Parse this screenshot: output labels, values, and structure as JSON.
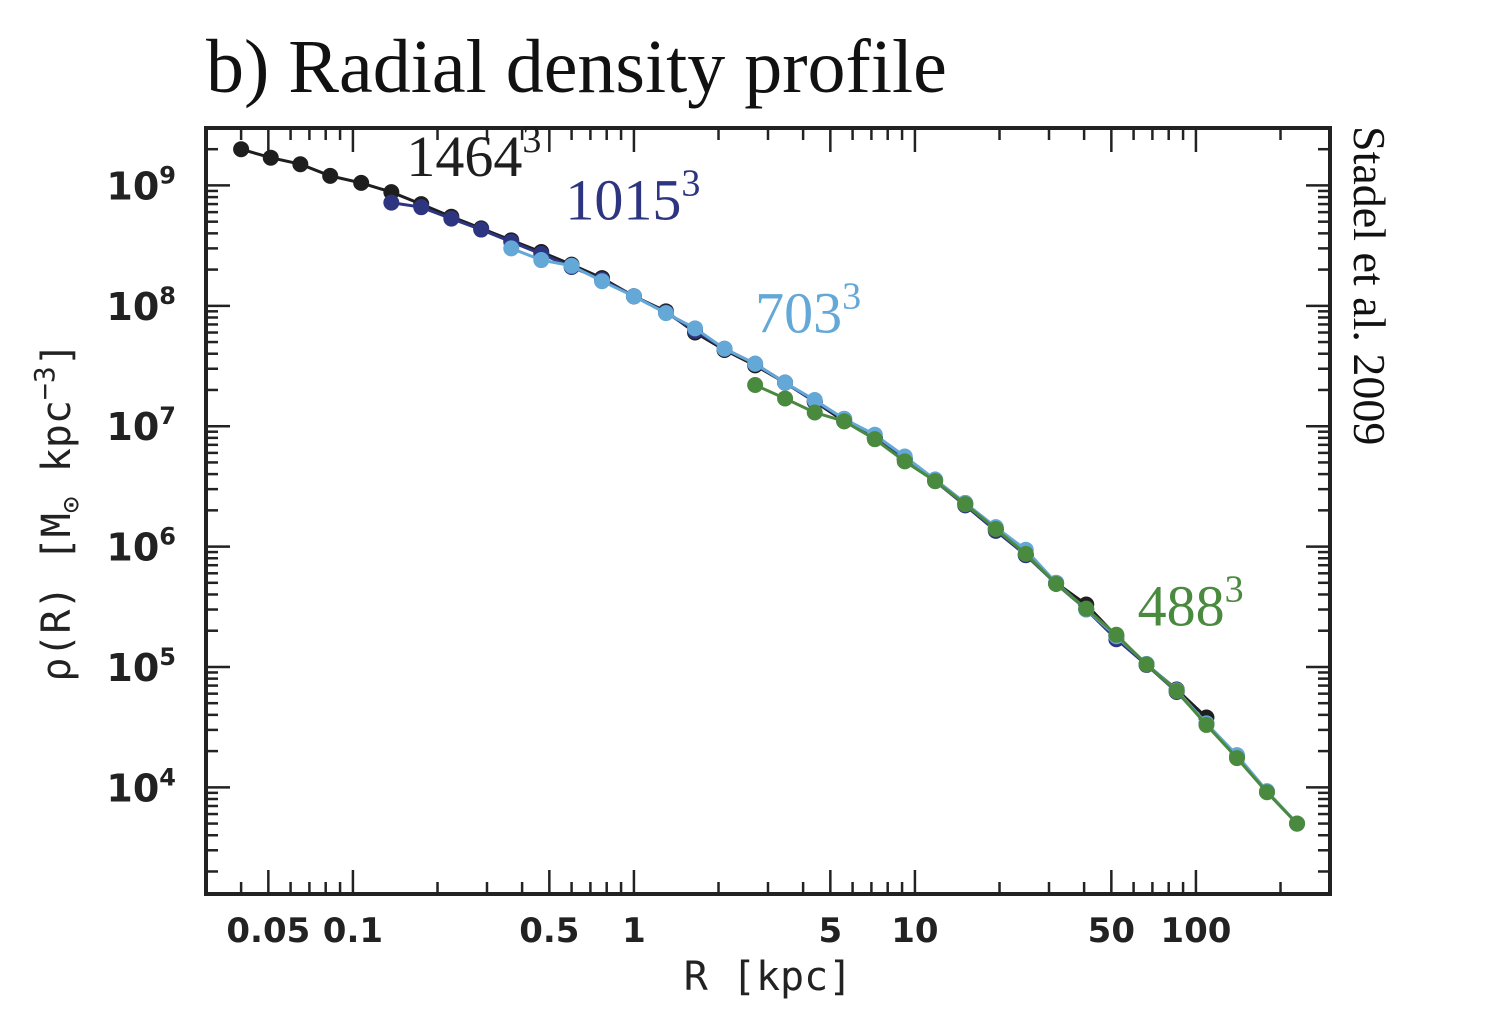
{
  "chart_data": {
    "type": "line",
    "title": "b) Radial density profile",
    "credit": "Stadel et al. 2009",
    "xlabel": "R [kpc]",
    "ylabel_main": "ρ(R) [M",
    "ylabel_sun": "⊙",
    "ylabel_kpc": " kpc",
    "ylabel_exp": "−3",
    "ylabel_end": "]",
    "x_scale": "log",
    "y_scale": "log",
    "xlim": [
      0.03,
      300
    ],
    "ylim": [
      1300,
      3000000000
    ],
    "xticks": [
      {
        "value": 0.05,
        "label": "0.05"
      },
      {
        "value": 0.1,
        "label": "0.1"
      },
      {
        "value": 0.5,
        "label": "0.5"
      },
      {
        "value": 1,
        "label": "1"
      },
      {
        "value": 5,
        "label": "5"
      },
      {
        "value": 10,
        "label": "10"
      },
      {
        "value": 50,
        "label": "50"
      },
      {
        "value": 100,
        "label": "100"
      }
    ],
    "yticks": [
      {
        "value": 10000,
        "base": "10",
        "exp": "4"
      },
      {
        "value": 100000,
        "base": "10",
        "exp": "5"
      },
      {
        "value": 1000000,
        "base": "10",
        "exp": "6"
      },
      {
        "value": 10000000,
        "base": "10",
        "exp": "7"
      },
      {
        "value": 100000000,
        "base": "10",
        "exp": "8"
      },
      {
        "value": 1000000000,
        "base": "10",
        "exp": "9"
      }
    ],
    "series": [
      {
        "name": "1464",
        "exp": "3",
        "color": "#1e1e1e",
        "label_at": [
          0.155,
          1200000000
        ],
        "x": [
          0.04,
          0.051,
          0.065,
          0.083,
          0.107,
          0.137,
          0.175,
          0.224,
          0.286,
          0.366,
          0.468,
          0.6,
          0.77,
          1.0,
          1.3,
          1.65,
          2.1,
          2.7,
          3.45,
          4.4,
          5.6,
          7.2,
          9.2,
          11.8,
          15.1,
          19.4,
          24.8,
          31.8,
          40.7,
          52.1,
          66.7,
          85.4,
          109
        ],
        "values": [
          2000000000,
          1700000000,
          1500000000,
          1200000000,
          1050000000,
          880000000,
          700000000,
          550000000,
          440000000,
          350000000,
          280000000,
          220000000,
          170000000,
          120000000,
          90000000,
          60000000,
          43000000,
          32000000,
          23000000,
          16000000,
          11000000,
          8000000,
          5300000,
          3600000,
          2300000,
          1400000,
          850000,
          500000,
          330000,
          180000,
          105000,
          65000,
          38000
        ]
      },
      {
        "name": "1015",
        "exp": "3",
        "color": "#2e3580",
        "label_at": [
          0.57,
          520000000
        ],
        "x": [
          0.137,
          0.175,
          0.224,
          0.286,
          0.366,
          0.468,
          0.6,
          0.77,
          1.0,
          1.3,
          1.65,
          2.1,
          2.7,
          3.45,
          4.4,
          5.6,
          7.2,
          9.2,
          11.8,
          15.1,
          19.4,
          24.8,
          31.8,
          40.7,
          52.1,
          66.7,
          85.4,
          109,
          140,
          179,
          229
        ],
        "values": [
          720000000,
          660000000,
          530000000,
          430000000,
          340000000,
          270000000,
          210000000,
          165000000,
          120000000,
          88000000,
          62000000,
          44000000,
          33000000,
          23000000,
          16000000,
          11500000,
          8000000,
          5400000,
          3500000,
          2200000,
          1350000,
          850000,
          490000,
          300000,
          170000,
          104000,
          62000,
          34000,
          18000,
          9200,
          5000
        ]
      },
      {
        "name": "703",
        "exp": "3",
        "color": "#64a8d8",
        "label_at": [
          2.7,
          60000000
        ],
        "x": [
          0.366,
          0.468,
          0.6,
          0.77,
          1.0,
          1.3,
          1.65,
          2.1,
          2.7,
          3.45,
          4.4,
          5.6,
          7.2,
          9.2,
          11.8,
          15.1,
          19.4,
          24.8,
          31.8,
          40.7,
          52.1,
          66.7,
          85.4,
          109,
          140,
          179,
          229
        ],
        "values": [
          300000000,
          240000000,
          215000000,
          160000000,
          120000000,
          87000000,
          65000000,
          44000000,
          33000000,
          23000000,
          16500000,
          11500000,
          8500000,
          5600000,
          3600000,
          2300000,
          1450000,
          940000,
          500000,
          300000,
          180000,
          106000,
          64000,
          34000,
          18500,
          9300,
          5000
        ]
      },
      {
        "name": "488",
        "exp": "3",
        "color": "#4a8a3e",
        "label_at": [
          62,
          220000
        ],
        "x": [
          2.7,
          3.45,
          4.4,
          5.6,
          7.2,
          9.2,
          11.8,
          15.1,
          19.4,
          24.8,
          31.8,
          40.7,
          52.1,
          66.7,
          85.4,
          109,
          140,
          179,
          229
        ],
        "values": [
          22000000,
          17000000,
          13000000,
          11000000,
          7800000,
          5100000,
          3500000,
          2250000,
          1400000,
          870000,
          490000,
          305000,
          185000,
          105000,
          63000,
          33000,
          17500,
          9100,
          5000
        ]
      }
    ]
  }
}
